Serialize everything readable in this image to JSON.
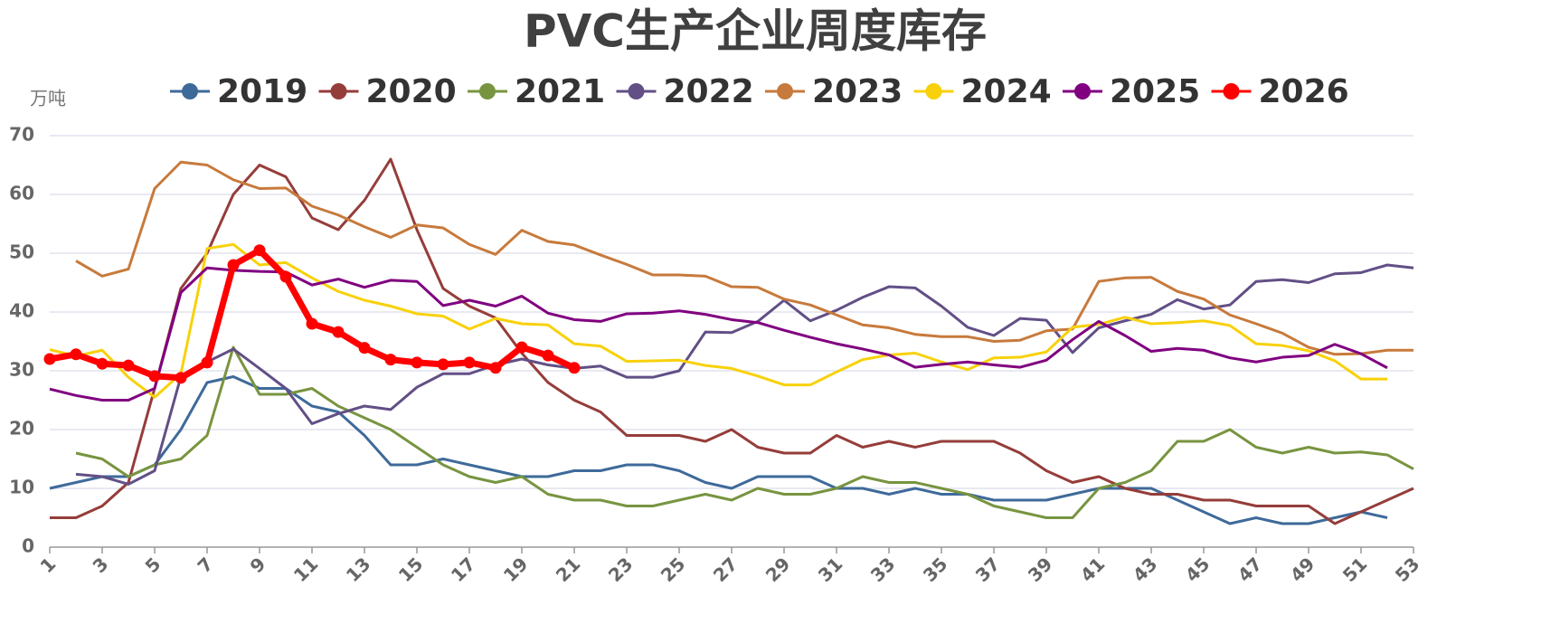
{
  "chart_data": {
    "type": "line",
    "title": "PVC生产企业周度库存",
    "y_label": "万吨",
    "x": [
      1,
      2,
      3,
      4,
      5,
      6,
      7,
      8,
      9,
      10,
      11,
      12,
      13,
      14,
      15,
      16,
      17,
      18,
      19,
      20,
      21,
      22,
      23,
      24,
      25,
      26,
      27,
      28,
      29,
      30,
      31,
      32,
      33,
      34,
      35,
      36,
      37,
      38,
      39,
      40,
      41,
      42,
      43,
      44,
      45,
      46,
      47,
      48,
      49,
      50,
      51,
      52,
      53
    ],
    "xlim": [
      1,
      53
    ],
    "xticks": [
      1,
      3,
      5,
      7,
      9,
      11,
      13,
      15,
      17,
      19,
      21,
      23,
      25,
      27,
      29,
      31,
      33,
      35,
      37,
      39,
      41,
      43,
      45,
      47,
      49,
      51,
      53
    ],
    "ylim": [
      0,
      70
    ],
    "yticks": [
      0,
      10,
      20,
      30,
      40,
      50,
      60,
      70
    ],
    "grid": true,
    "legend": "top",
    "series": [
      {
        "name": "2019",
        "color": "#3e6a9a",
        "values": [
          10,
          11,
          12,
          12,
          14,
          20,
          28,
          29,
          27,
          27,
          24,
          23,
          19,
          14,
          14,
          15,
          14,
          13,
          12,
          12,
          13,
          13,
          14,
          14,
          13,
          11,
          10,
          12,
          12,
          12,
          10,
          10,
          9,
          10,
          9,
          9,
          8,
          8,
          8,
          9,
          10,
          10,
          10,
          8,
          6,
          4,
          5,
          4,
          4,
          5,
          6,
          5,
          null
        ]
      },
      {
        "name": "2020",
        "color": "#953d3a",
        "values": [
          5,
          5,
          7,
          11,
          27,
          44,
          50,
          60,
          65,
          63,
          56,
          54,
          59,
          66,
          54,
          44,
          41,
          39,
          33,
          28,
          25,
          23,
          19,
          19,
          19,
          18,
          20,
          17,
          16,
          16,
          19,
          17,
          18,
          17,
          18,
          18,
          18,
          16,
          13,
          11,
          12,
          10,
          9,
          9,
          8,
          8,
          7,
          7,
          7,
          4,
          6,
          8,
          10
        ]
      },
      {
        "name": "2021",
        "color": "#789440",
        "values": [
          null,
          16,
          15,
          12,
          14,
          15,
          19,
          34,
          26,
          26,
          27,
          24,
          22,
          20,
          17,
          14,
          12,
          11,
          12,
          9,
          8,
          8,
          7,
          7,
          8,
          9,
          8,
          10,
          9,
          9,
          10,
          12,
          11,
          11,
          10,
          9,
          7,
          6,
          5,
          5,
          10,
          11,
          13,
          18,
          18,
          20,
          17,
          16,
          17,
          16,
          16.2,
          15.7,
          13.3
        ]
      },
      {
        "name": "2022",
        "color": "#624f86",
        "values": [
          null,
          12.4,
          12,
          10.7,
          13,
          29,
          31.5,
          33.7,
          30.4,
          27,
          21,
          22.7,
          24,
          23.4,
          27.2,
          29.5,
          29.5,
          31,
          32,
          31,
          30.4,
          30.8,
          28.9,
          28.9,
          30,
          36.6,
          36.5,
          38.4,
          42,
          38.5,
          40.3,
          42.5,
          44.3,
          44.1,
          41,
          37.4,
          36,
          38.9,
          38.6,
          33.1,
          37.3,
          38.5,
          39.6,
          42.1,
          40.5,
          41.2,
          45.2,
          45.5,
          45,
          46.5,
          46.7,
          48,
          47.5
        ]
      },
      {
        "name": "2023",
        "color": "#c77a3c",
        "values": [
          null,
          48.7,
          46.1,
          47.3,
          61,
          65.5,
          65,
          62.5,
          61,
          61.1,
          58,
          56.5,
          54.5,
          52.7,
          54.8,
          54.3,
          51.5,
          49.8,
          53.9,
          52,
          51.4,
          49.7,
          48.1,
          46.3,
          46.3,
          46.1,
          44.3,
          44.2,
          42.2,
          41.2,
          39.5,
          37.8,
          37.3,
          36.2,
          35.8,
          35.8,
          35,
          35.2,
          36.8,
          37.1,
          45.2,
          45.8,
          45.9,
          43.5,
          42.2,
          39.5,
          38,
          36.4,
          34,
          32.8,
          32.9,
          33.5,
          33.5
        ]
      },
      {
        "name": "2024",
        "color": "#f8d10a",
        "values": [
          33.6,
          32.5,
          33.5,
          28.9,
          25.5,
          29.5,
          50.8,
          51.5,
          48,
          48.4,
          45.8,
          43.5,
          42,
          41,
          39.7,
          39.3,
          37.1,
          38.9,
          38,
          37.8,
          34.6,
          34.2,
          31.6,
          31.7,
          31.8,
          30.9,
          30.4,
          29.1,
          27.6,
          27.6,
          29.8,
          31.9,
          32.7,
          33,
          31.5,
          30.2,
          32.2,
          32.3,
          33.2,
          37.4,
          37.9,
          39.1,
          38,
          38.2,
          38.5,
          37.7,
          34.6,
          34.3,
          33.4,
          31.7,
          28.6,
          28.6,
          null
        ]
      },
      {
        "name": "2025",
        "color": "#800080",
        "values": [
          26.9,
          25.8,
          25,
          25,
          27,
          43.3,
          47.5,
          47.1,
          46.9,
          46.8,
          44.6,
          45.6,
          44.2,
          45.4,
          45.2,
          41.1,
          42,
          41,
          42.7,
          39.8,
          38.7,
          38.4,
          39.7,
          39.8,
          40.2,
          39.6,
          38.7,
          38.2,
          36.9,
          35.7,
          34.6,
          33.7,
          32.7,
          30.6,
          31.1,
          31.5,
          31,
          30.6,
          31.8,
          35.3,
          38.4,
          36,
          33.3,
          33.8,
          33.5,
          32.2,
          31.5,
          32.3,
          32.6,
          34.5,
          32.9,
          30.5,
          null
        ]
      },
      {
        "name": "2026",
        "color": "#ff0000",
        "markers": true,
        "values": [
          32,
          32.8,
          31.2,
          30.9,
          29.1,
          28.8,
          31.4,
          48,
          50.5,
          46,
          38,
          36.6,
          33.9,
          31.9,
          31.4,
          31.1,
          31.4,
          30.5,
          34,
          32.6,
          30.5,
          null,
          null,
          null,
          null,
          null,
          null,
          null,
          null,
          null,
          null,
          null,
          null,
          null,
          null,
          null,
          null,
          null,
          null,
          null,
          null,
          null,
          null,
          null,
          null,
          null,
          null,
          null,
          null,
          null,
          null,
          null,
          null
        ]
      }
    ]
  }
}
